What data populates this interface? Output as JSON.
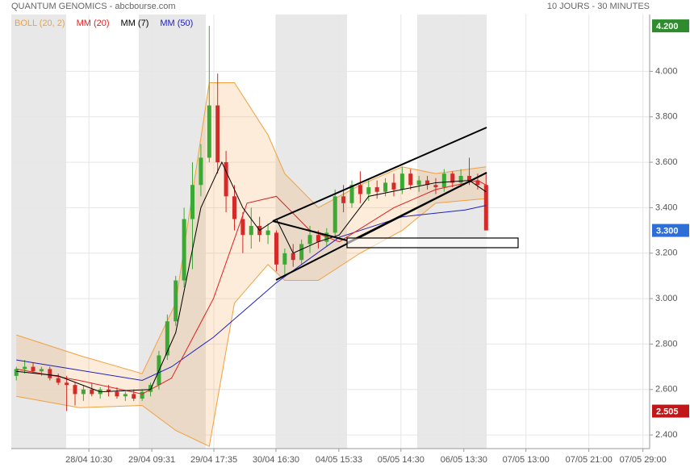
{
  "chart_data": {
    "type": "candlestick",
    "title": "QUANTUM GENOMICS - abcbourse.com",
    "subtitle": "10 JOURS - 30 MINUTES",
    "legend": [
      {
        "name": "BOLL (20, 2)",
        "color": "#f0a040"
      },
      {
        "name": "MM (20)",
        "color": "#e02020"
      },
      {
        "name": "MM (7)",
        "color": "#000000"
      },
      {
        "name": "MM (50)",
        "color": "#2020c0"
      }
    ],
    "xlim": [
      -1.2,
      151
    ],
    "ylim": [
      2.34,
      4.25
    ],
    "grid": true,
    "yticks": [
      {
        "value": 2.4,
        "label": "2.400"
      },
      {
        "value": 2.6,
        "label": "2.600"
      },
      {
        "value": 2.8,
        "label": "2.800"
      },
      {
        "value": 3.0,
        "label": "3.000"
      },
      {
        "value": 3.2,
        "label": "3.200"
      },
      {
        "value": 3.4,
        "label": "3.400"
      },
      {
        "value": 3.6,
        "label": "3.600"
      },
      {
        "value": 3.8,
        "label": "3.800"
      },
      {
        "value": 4.0,
        "label": "4.000"
      }
    ],
    "xticks": [
      {
        "value": 17.3,
        "label": "28/04 10:30"
      },
      {
        "value": 32.3,
        "label": "29/04 09:31"
      },
      {
        "value": 47.1,
        "label": "29/04 17:35"
      },
      {
        "value": 61.9,
        "label": "30/04 16:30"
      },
      {
        "value": 76.9,
        "label": "04/05 15:33"
      },
      {
        "value": 91.7,
        "label": "05/05 14:30"
      },
      {
        "value": 106.7,
        "label": "06/05 13:30"
      },
      {
        "value": 121.5,
        "label": "07/05 13:00"
      },
      {
        "value": 136.5,
        "label": "07/05 21:00"
      },
      {
        "value": 149.4,
        "label": "07/05 29:00"
      }
    ],
    "up_color": "#3aaa35",
    "down_color": "#d42a2a",
    "x": [
      0,
      2,
      4,
      6,
      8,
      10,
      12,
      14,
      16,
      18,
      20,
      22,
      24,
      26,
      28,
      30,
      32,
      34,
      36,
      38,
      40,
      42,
      44,
      46,
      48,
      50,
      52,
      54,
      56,
      58,
      60,
      62,
      64,
      66,
      68,
      70,
      72,
      74,
      76,
      78,
      80,
      82,
      84,
      86,
      88,
      90,
      92,
      94,
      96,
      98,
      100,
      102,
      104,
      106,
      108,
      110,
      112
    ],
    "open": [
      2.66,
      2.69,
      2.7,
      2.68,
      2.69,
      2.65,
      2.63,
      2.62,
      2.58,
      2.6,
      2.58,
      2.6,
      2.59,
      2.57,
      2.58,
      2.56,
      2.59,
      2.62,
      2.75,
      2.9,
      3.08,
      3.35,
      3.5,
      3.62,
      3.85,
      3.6,
      3.45,
      3.35,
      3.28,
      3.32,
      3.28,
      3.29,
      3.15,
      3.2,
      3.17,
      3.24,
      3.28,
      3.25,
      3.29,
      3.45,
      3.42,
      3.5,
      3.46,
      3.49,
      3.47,
      3.51,
      3.48,
      3.55,
      3.5,
      3.52,
      3.5,
      3.49,
      3.55,
      3.51,
      3.54,
      3.52,
      3.5
    ],
    "high": [
      2.7,
      2.73,
      2.72,
      2.7,
      2.7,
      2.67,
      2.66,
      2.63,
      2.62,
      2.63,
      2.61,
      2.62,
      2.61,
      2.59,
      2.6,
      2.6,
      2.63,
      2.77,
      2.93,
      3.1,
      3.4,
      3.6,
      3.68,
      4.2,
      3.99,
      3.65,
      3.5,
      3.38,
      3.4,
      3.36,
      3.33,
      3.3,
      3.22,
      3.24,
      3.26,
      3.32,
      3.3,
      3.31,
      3.48,
      3.5,
      3.52,
      3.56,
      3.52,
      3.52,
      3.53,
      3.55,
      3.58,
      3.57,
      3.54,
      3.54,
      3.53,
      3.57,
      3.56,
      3.57,
      3.62,
      3.55,
      3.55
    ],
    "low": [
      2.64,
      2.67,
      2.67,
      2.66,
      2.64,
      2.62,
      2.505,
      2.53,
      2.55,
      2.57,
      2.56,
      2.57,
      2.56,
      2.55,
      2.55,
      2.55,
      2.57,
      2.6,
      2.73,
      2.88,
      3.05,
      3.13,
      3.45,
      3.6,
      3.55,
      3.38,
      3.3,
      3.2,
      3.22,
      3.25,
      3.24,
      3.12,
      3.1,
      3.14,
      3.15,
      3.2,
      3.22,
      3.23,
      3.27,
      3.38,
      3.4,
      3.42,
      3.43,
      3.44,
      3.45,
      3.45,
      3.46,
      3.48,
      3.47,
      3.48,
      3.46,
      3.47,
      3.49,
      3.49,
      3.5,
      3.48,
      3.3
    ],
    "close": [
      2.69,
      2.7,
      2.68,
      2.69,
      2.65,
      2.63,
      2.62,
      2.58,
      2.6,
      2.58,
      2.6,
      2.59,
      2.57,
      2.58,
      2.56,
      2.59,
      2.62,
      2.75,
      2.9,
      3.08,
      3.35,
      3.5,
      3.62,
      3.85,
      3.6,
      3.45,
      3.35,
      3.28,
      3.32,
      3.28,
      3.3,
      3.15,
      3.2,
      3.17,
      3.24,
      3.28,
      3.25,
      3.29,
      3.45,
      3.42,
      3.5,
      3.46,
      3.49,
      3.47,
      3.51,
      3.48,
      3.55,
      3.5,
      3.52,
      3.5,
      3.49,
      3.55,
      3.51,
      3.54,
      3.52,
      3.5,
      3.3
    ],
    "bollinger": {
      "color": "#f0a040",
      "x": [
        0,
        15,
        30,
        38,
        46,
        52,
        60,
        64,
        72,
        82,
        92,
        100,
        112
      ],
      "upper": [
        2.84,
        2.75,
        2.67,
        2.98,
        3.95,
        3.95,
        3.72,
        3.55,
        3.4,
        3.5,
        3.58,
        3.55,
        3.58
      ],
      "lower": [
        2.57,
        2.52,
        2.53,
        2.42,
        2.35,
        2.98,
        3.15,
        3.08,
        3.08,
        3.2,
        3.3,
        3.42,
        3.44
      ]
    },
    "lines": [
      {
        "name": "MM (50)",
        "color": "#2020c0",
        "x": [
          0,
          30,
          37,
          47,
          62,
          77,
          92,
          107,
          112
        ],
        "values": [
          2.73,
          2.64,
          2.7,
          2.83,
          3.07,
          3.27,
          3.36,
          3.39,
          3.41
        ]
      },
      {
        "name": "MM (20)",
        "color": "#e02020",
        "x": [
          0,
          15,
          30,
          37,
          47,
          55,
          62,
          70,
          77,
          90,
          100,
          110,
          112
        ],
        "values": [
          2.69,
          2.64,
          2.58,
          2.65,
          3.0,
          3.42,
          3.45,
          3.3,
          3.25,
          3.4,
          3.48,
          3.52,
          3.5
        ]
      },
      {
        "name": "MM (7)",
        "color": "#000000",
        "x": [
          0,
          10,
          20,
          32,
          38,
          44,
          49,
          54,
          58,
          62,
          66,
          72,
          77,
          84,
          92,
          100,
          108,
          112
        ],
        "values": [
          2.68,
          2.66,
          2.59,
          2.6,
          2.85,
          3.4,
          3.6,
          3.4,
          3.3,
          3.35,
          3.2,
          3.25,
          3.28,
          3.45,
          3.48,
          3.51,
          3.52,
          3.47
        ]
      }
    ],
    "price_markers": [
      {
        "value": 4.2,
        "label": "4.200",
        "color": "#2e8b2e"
      },
      {
        "value": 3.3,
        "label": "3.300",
        "color": "#2d6fd6"
      },
      {
        "value": 2.505,
        "label": "2.505",
        "color": "#c01818"
      }
    ]
  }
}
